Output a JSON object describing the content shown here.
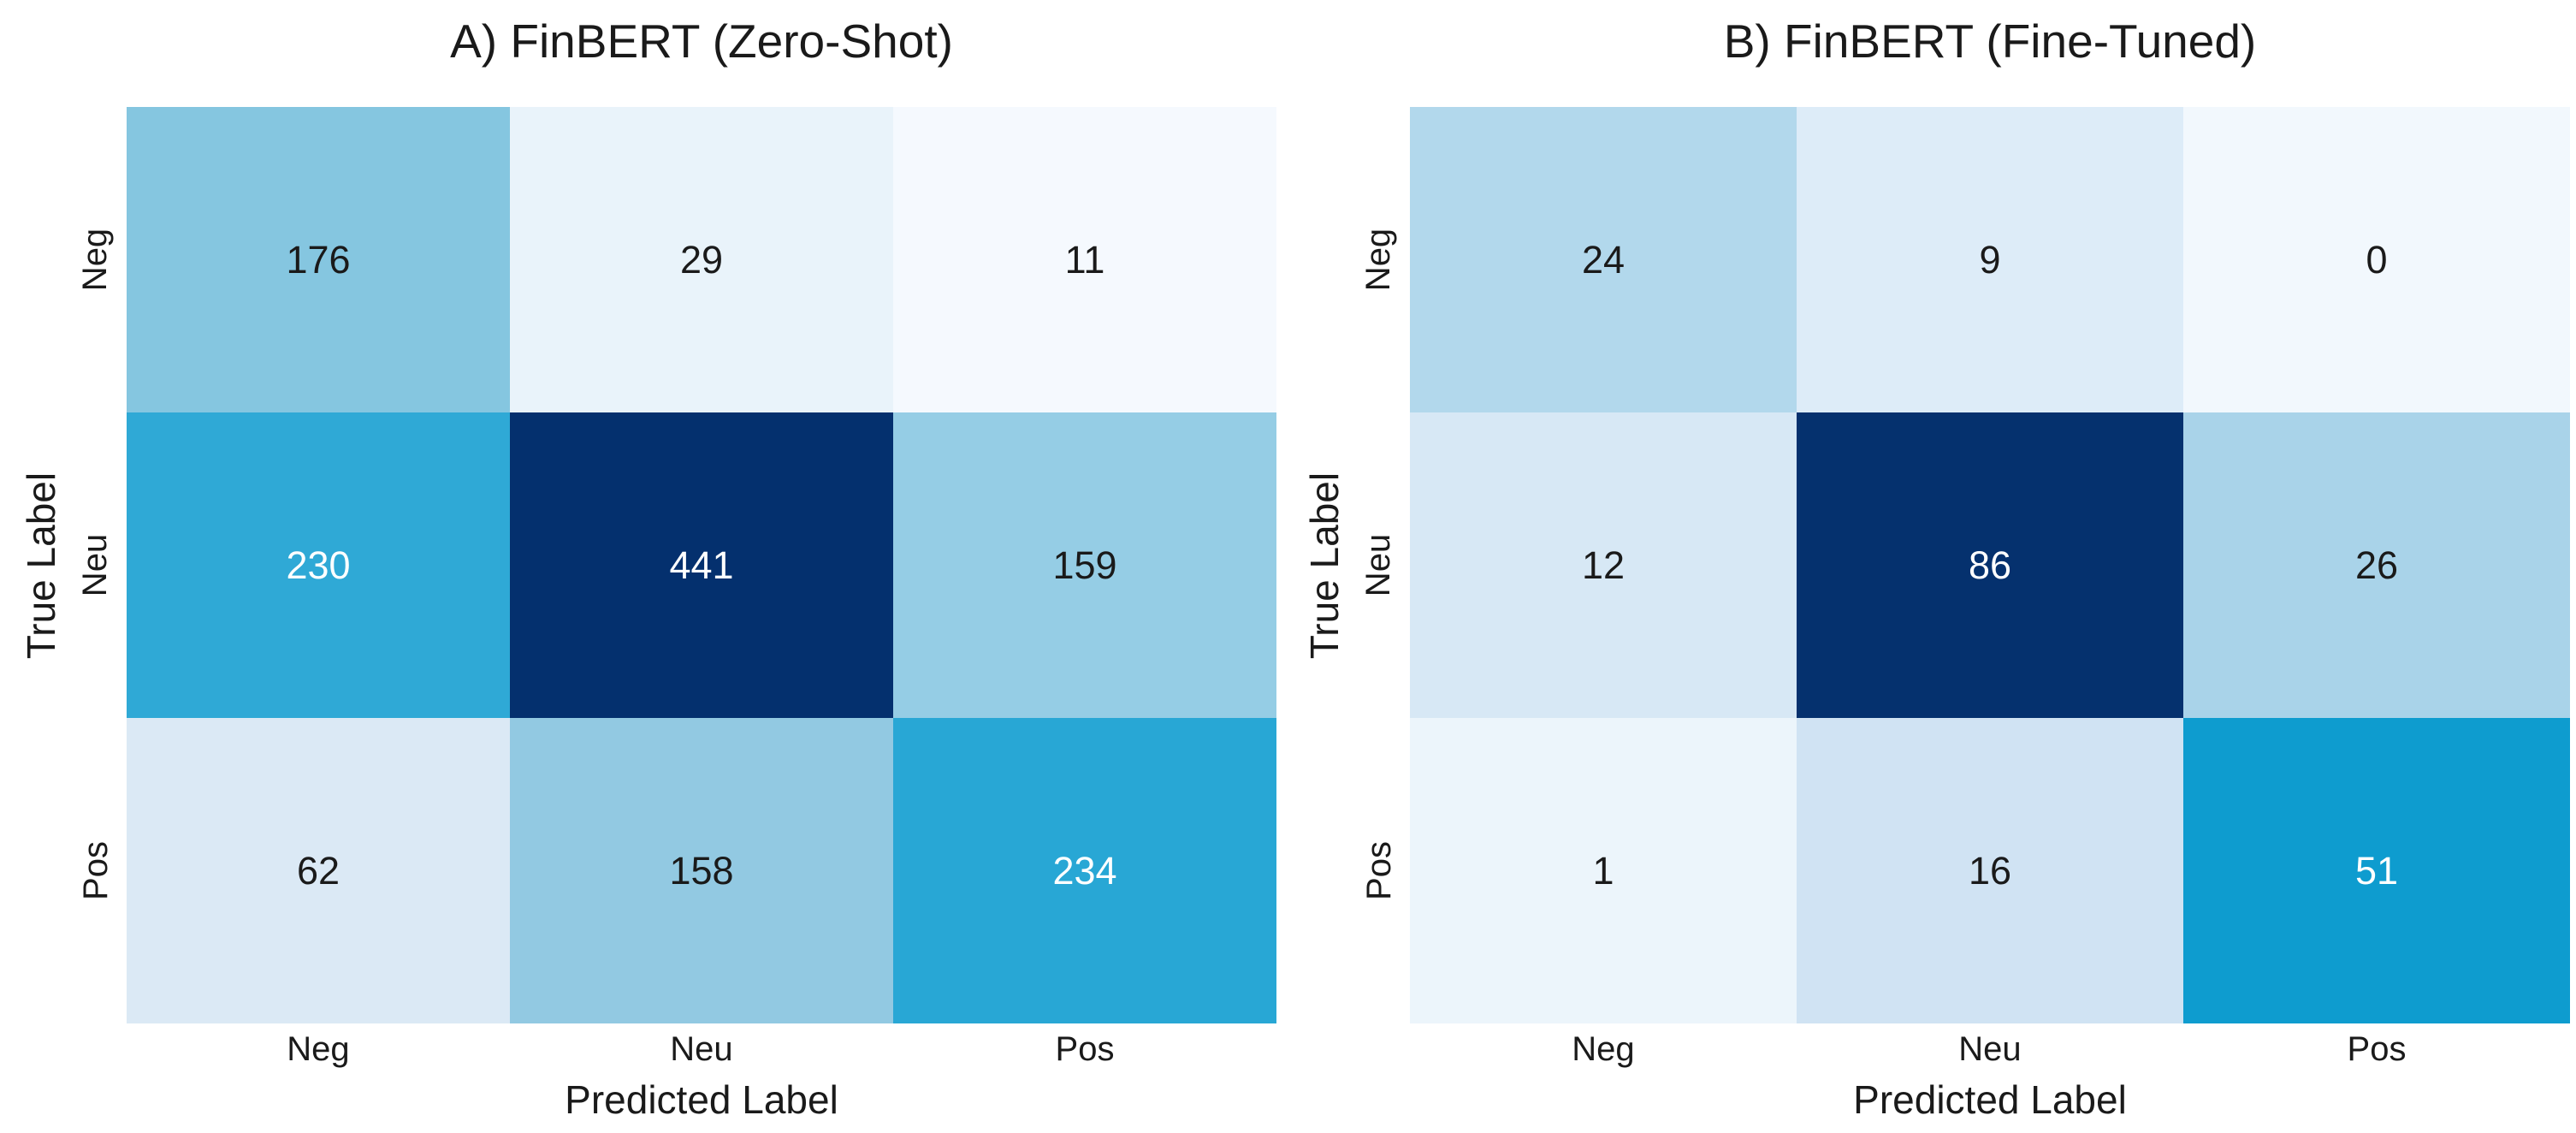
{
  "colors": {
    "background": "#ffffff",
    "text": "#1a1a1a",
    "annotation_light": "#ffffff",
    "annotation_dark": "#1a1a1a",
    "colormap_min": "#f5f9fe",
    "colormap_max": "#04306e"
  },
  "chart_data": [
    {
      "type": "heatmap",
      "title": "A) FinBERT (Zero-Shot)",
      "xlabel": "Predicted Label",
      "ylabel": "True Label",
      "x_ticklabels": [
        "Neg",
        "Neu",
        "Pos"
      ],
      "y_ticklabels": [
        "Neg",
        "Neu",
        "Pos"
      ],
      "values": [
        [
          176,
          29,
          11
        ],
        [
          230,
          441,
          159
        ],
        [
          62,
          158,
          234
        ]
      ],
      "cell_colors": [
        [
          "#85c6e0",
          "#e9f3fa",
          "#f5f9fe"
        ],
        [
          "#2fa9d6",
          "#04306e",
          "#95cde5"
        ],
        [
          "#dbe9f5",
          "#92c9e2",
          "#28a7d5"
        ]
      ],
      "text_colors": [
        [
          "#1a1a1a",
          "#1a1a1a",
          "#1a1a1a"
        ],
        [
          "#ffffff",
          "#ffffff",
          "#1a1a1a"
        ],
        [
          "#1a1a1a",
          "#1a1a1a",
          "#ffffff"
        ]
      ]
    },
    {
      "type": "heatmap",
      "title": "B) FinBERT (Fine-Tuned)",
      "xlabel": "Predicted Label",
      "ylabel": "True Label",
      "x_ticklabels": [
        "Neg",
        "Neu",
        "Pos"
      ],
      "y_ticklabels": [
        "Neg",
        "Neu",
        "Pos"
      ],
      "values": [
        [
          24,
          9,
          0
        ],
        [
          12,
          86,
          26
        ],
        [
          1,
          16,
          51
        ]
      ],
      "cell_colors": [
        [
          "#b2d8ec",
          "#ddecf8",
          "#f2f8fd"
        ],
        [
          "#d7e8f5",
          "#05316e",
          "#a9d3e9"
        ],
        [
          "#ecf5fb",
          "#d0e3f3",
          "#0e9ccf"
        ]
      ],
      "text_colors": [
        [
          "#1a1a1a",
          "#1a1a1a",
          "#1a1a1a"
        ],
        [
          "#1a1a1a",
          "#ffffff",
          "#1a1a1a"
        ],
        [
          "#1a1a1a",
          "#1a1a1a",
          "#ffffff"
        ]
      ]
    }
  ]
}
